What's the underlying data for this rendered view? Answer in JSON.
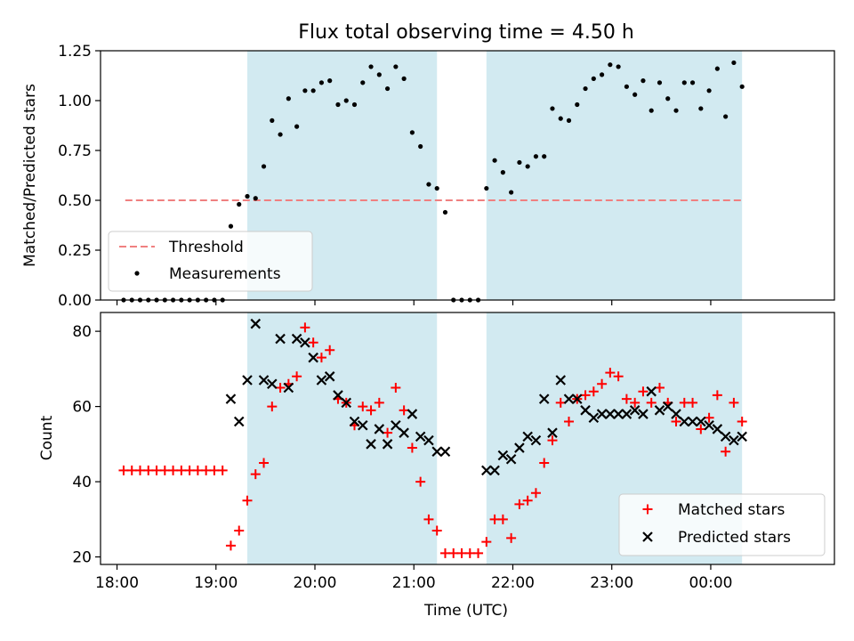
{
  "title": "Flux total observing time = 4.50 h",
  "colors": {
    "threshold": "#f08080",
    "measurements": "#000000",
    "matched": "#ff0000",
    "predicted": "#000000",
    "shade": "#add8e6"
  },
  "chart_data": [
    {
      "type": "scatter",
      "ylabel": "Matched/Predicted stars",
      "ylim": [
        0,
        1.25
      ],
      "yticks": [
        0,
        0.25,
        0.5,
        0.75,
        1.0,
        1.25
      ],
      "ytick_labels": [
        "0.00",
        "0.25",
        "0.50",
        "0.75",
        "1.00",
        "1.25"
      ],
      "xlim": [
        "17:50",
        "01:15"
      ],
      "shaded_spans": [
        [
          "19:19",
          "21:14"
        ],
        [
          "21:44",
          "00:19"
        ]
      ],
      "threshold": {
        "name": "Threshold",
        "y": 0.5,
        "x": [
          "18:05",
          "00:19"
        ],
        "style": "dashed"
      },
      "legend": {
        "position": "lower left",
        "entries": [
          "Threshold",
          "Measurements"
        ]
      },
      "series": [
        {
          "name": "Measurements",
          "marker": "dot",
          "points": [
            [
              "18:04",
              0
            ],
            [
              "18:09",
              0
            ],
            [
              "18:14",
              0
            ],
            [
              "18:19",
              0
            ],
            [
              "18:24",
              0
            ],
            [
              "18:29",
              0
            ],
            [
              "18:34",
              0
            ],
            [
              "18:39",
              0
            ],
            [
              "18:44",
              0
            ],
            [
              "18:49",
              0
            ],
            [
              "18:54",
              0
            ],
            [
              "18:59",
              0
            ],
            [
              "19:04",
              0
            ],
            [
              "19:09",
              0.37
            ],
            [
              "19:14",
              0.48
            ],
            [
              "19:19",
              0.52
            ],
            [
              "19:24",
              0.51
            ],
            [
              "19:29",
              0.67
            ],
            [
              "19:34",
              0.9
            ],
            [
              "19:39",
              0.83
            ],
            [
              "19:44",
              1.01
            ],
            [
              "19:49",
              0.87
            ],
            [
              "19:54",
              1.05
            ],
            [
              "19:59",
              1.05
            ],
            [
              "20:04",
              1.09
            ],
            [
              "20:09",
              1.1
            ],
            [
              "20:14",
              0.98
            ],
            [
              "20:19",
              1.0
            ],
            [
              "20:24",
              0.98
            ],
            [
              "20:29",
              1.09
            ],
            [
              "20:34",
              1.17
            ],
            [
              "20:39",
              1.13
            ],
            [
              "20:44",
              1.06
            ],
            [
              "20:49",
              1.17
            ],
            [
              "20:54",
              1.11
            ],
            [
              "20:59",
              0.84
            ],
            [
              "21:04",
              0.77
            ],
            [
              "21:09",
              0.58
            ],
            [
              "21:14",
              0.56
            ],
            [
              "21:19",
              0.44
            ],
            [
              "21:24",
              0
            ],
            [
              "21:29",
              0
            ],
            [
              "21:34",
              0
            ],
            [
              "21:39",
              0
            ],
            [
              "21:44",
              0.56
            ],
            [
              "21:49",
              0.7
            ],
            [
              "21:54",
              0.64
            ],
            [
              "21:59",
              0.54
            ],
            [
              "22:04",
              0.69
            ],
            [
              "22:09",
              0.67
            ],
            [
              "22:14",
              0.72
            ],
            [
              "22:19",
              0.72
            ],
            [
              "22:24",
              0.96
            ],
            [
              "22:29",
              0.91
            ],
            [
              "22:34",
              0.9
            ],
            [
              "22:39",
              0.98
            ],
            [
              "22:44",
              1.06
            ],
            [
              "22:49",
              1.11
            ],
            [
              "22:54",
              1.13
            ],
            [
              "22:59",
              1.18
            ],
            [
              "23:04",
              1.17
            ],
            [
              "23:09",
              1.07
            ],
            [
              "23:14",
              1.03
            ],
            [
              "23:19",
              1.1
            ],
            [
              "23:24",
              0.95
            ],
            [
              "23:29",
              1.09
            ],
            [
              "23:34",
              1.01
            ],
            [
              "23:39",
              0.95
            ],
            [
              "23:44",
              1.09
            ],
            [
              "23:49",
              1.09
            ],
            [
              "23:54",
              0.96
            ],
            [
              "23:59",
              1.05
            ],
            [
              "00:04",
              1.16
            ],
            [
              "00:09",
              0.92
            ],
            [
              "00:14",
              1.19
            ],
            [
              "00:19",
              1.07
            ]
          ]
        }
      ]
    },
    {
      "type": "scatter",
      "xlabel": "Time (UTC)",
      "ylabel": "Count",
      "ylim": [
        18,
        85
      ],
      "yticks": [
        20,
        40,
        60,
        80
      ],
      "xlim": [
        "17:50",
        "01:15"
      ],
      "xticks": [
        "18:00",
        "19:00",
        "20:00",
        "21:00",
        "22:00",
        "23:00",
        "00:00"
      ],
      "shaded_spans": [
        [
          "19:19",
          "21:14"
        ],
        [
          "21:44",
          "00:19"
        ]
      ],
      "legend": {
        "position": "lower right",
        "entries": [
          "Matched stars",
          "Predicted stars"
        ]
      },
      "series": [
        {
          "name": "Matched stars",
          "marker": "plus",
          "points": [
            [
              "18:04",
              43
            ],
            [
              "18:09",
              43
            ],
            [
              "18:14",
              43
            ],
            [
              "18:19",
              43
            ],
            [
              "18:24",
              43
            ],
            [
              "18:29",
              43
            ],
            [
              "18:34",
              43
            ],
            [
              "18:39",
              43
            ],
            [
              "18:44",
              43
            ],
            [
              "18:49",
              43
            ],
            [
              "18:54",
              43
            ],
            [
              "18:59",
              43
            ],
            [
              "19:04",
              43
            ],
            [
              "19:09",
              23
            ],
            [
              "19:14",
              27
            ],
            [
              "19:19",
              35
            ],
            [
              "19:24",
              42
            ],
            [
              "19:29",
              45
            ],
            [
              "19:34",
              60
            ],
            [
              "19:39",
              65
            ],
            [
              "19:44",
              66
            ],
            [
              "19:49",
              68
            ],
            [
              "19:54",
              81
            ],
            [
              "19:59",
              77
            ],
            [
              "20:04",
              73
            ],
            [
              "20:09",
              75
            ],
            [
              "20:14",
              62
            ],
            [
              "20:19",
              61
            ],
            [
              "20:24",
              55
            ],
            [
              "20:29",
              60
            ],
            [
              "20:34",
              59
            ],
            [
              "20:39",
              61
            ],
            [
              "20:44",
              53
            ],
            [
              "20:49",
              65
            ],
            [
              "20:54",
              59
            ],
            [
              "20:59",
              49
            ],
            [
              "21:04",
              40
            ],
            [
              "21:09",
              30
            ],
            [
              "21:14",
              27
            ],
            [
              "21:19",
              21
            ],
            [
              "21:24",
              21
            ],
            [
              "21:29",
              21
            ],
            [
              "21:34",
              21
            ],
            [
              "21:39",
              21
            ],
            [
              "21:44",
              24
            ],
            [
              "21:49",
              30
            ],
            [
              "21:54",
              30
            ],
            [
              "21:59",
              25
            ],
            [
              "22:04",
              34
            ],
            [
              "22:09",
              35
            ],
            [
              "22:14",
              37
            ],
            [
              "22:19",
              45
            ],
            [
              "22:24",
              51
            ],
            [
              "22:29",
              61
            ],
            [
              "22:34",
              56
            ],
            [
              "22:39",
              62
            ],
            [
              "22:44",
              63
            ],
            [
              "22:49",
              64
            ],
            [
              "22:54",
              66
            ],
            [
              "22:59",
              69
            ],
            [
              "23:04",
              68
            ],
            [
              "23:09",
              62
            ],
            [
              "23:14",
              61
            ],
            [
              "23:19",
              64
            ],
            [
              "23:24",
              61
            ],
            [
              "23:29",
              65
            ],
            [
              "23:34",
              61
            ],
            [
              "23:39",
              56
            ],
            [
              "23:44",
              61
            ],
            [
              "23:49",
              61
            ],
            [
              "23:54",
              54
            ],
            [
              "23:59",
              57
            ],
            [
              "00:04",
              63
            ],
            [
              "00:09",
              48
            ],
            [
              "00:14",
              61
            ],
            [
              "00:19",
              56
            ]
          ]
        },
        {
          "name": "Predicted stars",
          "marker": "x",
          "points": [
            [
              "19:09",
              62
            ],
            [
              "19:14",
              56
            ],
            [
              "19:19",
              67
            ],
            [
              "19:24",
              82
            ],
            [
              "19:29",
              67
            ],
            [
              "19:34",
              66
            ],
            [
              "19:39",
              78
            ],
            [
              "19:44",
              65
            ],
            [
              "19:49",
              78
            ],
            [
              "19:54",
              77
            ],
            [
              "19:59",
              73
            ],
            [
              "20:04",
              67
            ],
            [
              "20:09",
              68
            ],
            [
              "20:14",
              63
            ],
            [
              "20:19",
              61
            ],
            [
              "20:24",
              56
            ],
            [
              "20:29",
              55
            ],
            [
              "20:34",
              50
            ],
            [
              "20:39",
              54
            ],
            [
              "20:44",
              50
            ],
            [
              "20:49",
              55
            ],
            [
              "20:54",
              53
            ],
            [
              "20:59",
              58
            ],
            [
              "21:04",
              52
            ],
            [
              "21:09",
              51
            ],
            [
              "21:14",
              48
            ],
            [
              "21:19",
              48
            ],
            [
              "21:44",
              43
            ],
            [
              "21:49",
              43
            ],
            [
              "21:54",
              47
            ],
            [
              "21:59",
              46
            ],
            [
              "22:04",
              49
            ],
            [
              "22:09",
              52
            ],
            [
              "22:14",
              51
            ],
            [
              "22:19",
              62
            ],
            [
              "22:24",
              53
            ],
            [
              "22:29",
              67
            ],
            [
              "22:34",
              62
            ],
            [
              "22:39",
              62
            ],
            [
              "22:44",
              59
            ],
            [
              "22:49",
              57
            ],
            [
              "22:54",
              58
            ],
            [
              "22:59",
              58
            ],
            [
              "23:04",
              58
            ],
            [
              "23:09",
              58
            ],
            [
              "23:14",
              59
            ],
            [
              "23:19",
              58
            ],
            [
              "23:24",
              64
            ],
            [
              "23:29",
              59
            ],
            [
              "23:34",
              60
            ],
            [
              "23:39",
              58
            ],
            [
              "23:44",
              56
            ],
            [
              "23:49",
              56
            ],
            [
              "23:54",
              56
            ],
            [
              "23:59",
              55
            ],
            [
              "00:04",
              54
            ],
            [
              "00:09",
              52
            ],
            [
              "00:14",
              51
            ],
            [
              "00:19",
              52
            ]
          ]
        }
      ]
    }
  ]
}
